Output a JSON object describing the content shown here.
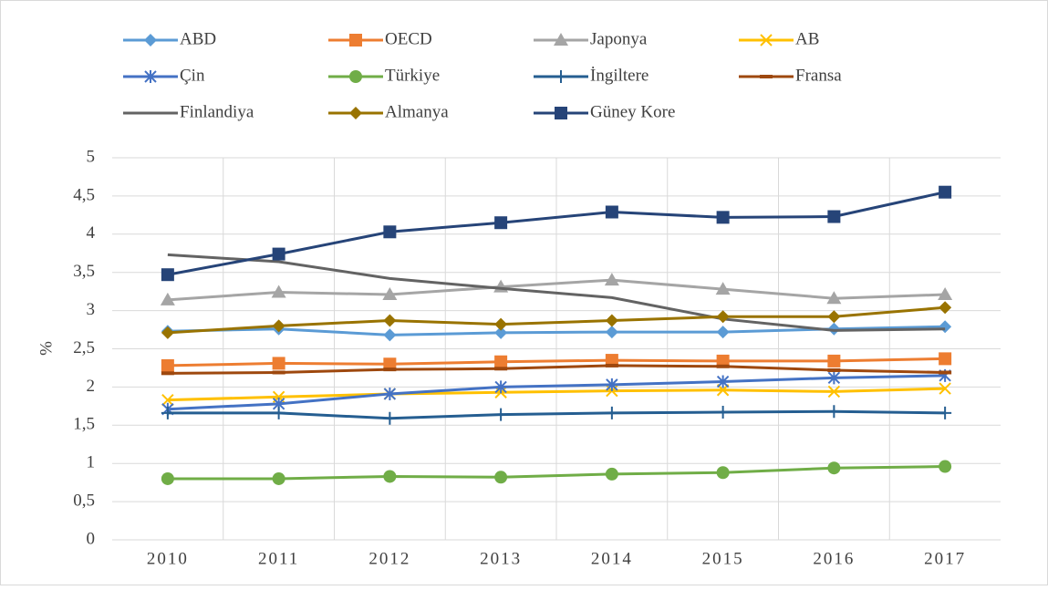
{
  "chart_data": {
    "type": "line",
    "y_label": "%",
    "categories": [
      "2010",
      "2011",
      "2012",
      "2013",
      "2014",
      "2015",
      "2016",
      "2017"
    ],
    "ylim": [
      0,
      5
    ],
    "yticks": [
      0,
      {
        "value": 0.5,
        "label": "0,5"
      },
      1,
      {
        "value": 1.5,
        "label": "1,5"
      },
      2,
      {
        "value": 2.5,
        "label": "2,5"
      },
      3,
      {
        "value": 3.5,
        "label": "3,5"
      },
      4,
      {
        "value": 4.5,
        "label": "4,5"
      },
      5
    ],
    "grid": true,
    "series": [
      {
        "name": "ABD",
        "color": "#5b9bd5",
        "marker": "diamond",
        "values": [
          2.73,
          2.76,
          2.68,
          2.71,
          2.72,
          2.72,
          2.76,
          2.79
        ]
      },
      {
        "name": "OECD",
        "color": "#ed7d31",
        "marker": "square",
        "values": [
          2.28,
          2.31,
          2.3,
          2.33,
          2.35,
          2.34,
          2.34,
          2.37
        ]
      },
      {
        "name": "Japonya",
        "color": "#a5a5a5",
        "marker": "triangle",
        "values": [
          3.14,
          3.24,
          3.21,
          3.31,
          3.4,
          3.28,
          3.16,
          3.21
        ]
      },
      {
        "name": "AB",
        "color": "#ffc000",
        "marker": "x",
        "values": [
          1.83,
          1.87,
          1.91,
          1.93,
          1.95,
          1.96,
          1.94,
          1.98
        ]
      },
      {
        "name": "Çin",
        "color": "#4472c4",
        "marker": "asterisk",
        "values": [
          1.71,
          1.78,
          1.91,
          2.0,
          2.03,
          2.07,
          2.12,
          2.15
        ]
      },
      {
        "name": "Türkiye",
        "color": "#70ad47",
        "marker": "circle",
        "values": [
          0.8,
          0.8,
          0.83,
          0.82,
          0.86,
          0.88,
          0.94,
          0.96
        ]
      },
      {
        "name": "İngiltere",
        "color": "#255e91",
        "marker": "plus",
        "values": [
          1.66,
          1.66,
          1.59,
          1.64,
          1.66,
          1.67,
          1.68,
          1.66
        ]
      },
      {
        "name": "Fransa",
        "color": "#9e480e",
        "marker": "dash",
        "values": [
          2.18,
          2.19,
          2.23,
          2.24,
          2.28,
          2.27,
          2.22,
          2.19
        ]
      },
      {
        "name": "Finlandiya",
        "color": "#636363",
        "marker": "none",
        "values": [
          3.73,
          3.64,
          3.42,
          3.29,
          3.17,
          2.89,
          2.74,
          2.76
        ]
      },
      {
        "name": "Almanya",
        "color": "#997300",
        "marker": "diamond",
        "values": [
          2.71,
          2.8,
          2.87,
          2.82,
          2.87,
          2.92,
          2.92,
          3.04
        ]
      },
      {
        "name": "Güney Kore",
        "color": "#264478",
        "marker": "square",
        "values": [
          3.47,
          3.74,
          4.03,
          4.15,
          4.29,
          4.22,
          4.23,
          4.55
        ]
      }
    ]
  }
}
